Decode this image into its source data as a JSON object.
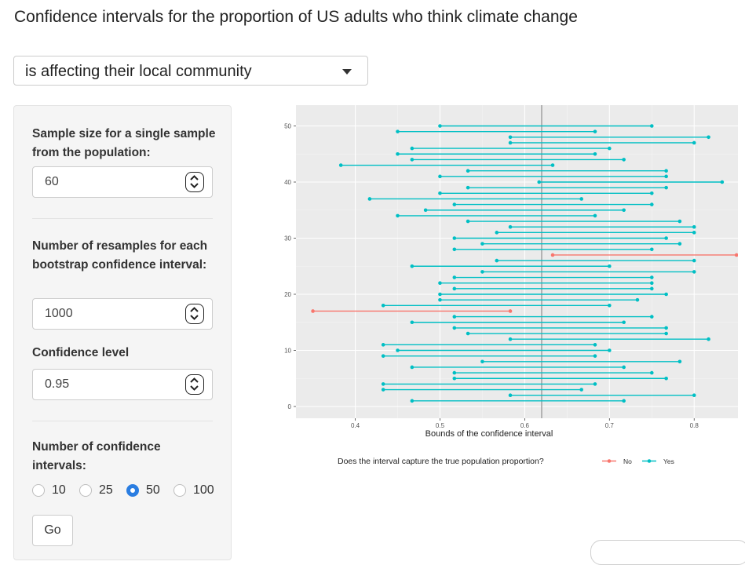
{
  "page": {
    "title": "Confidence intervals for the proportion of US adults who think climate change"
  },
  "statement_select": {
    "value": "is affecting their local community"
  },
  "controls": {
    "sample_size": {
      "label": "Sample size for a single sample from the population:",
      "value": "60"
    },
    "resamples": {
      "label": "Number of resamples for each bootstrap confidence interval:",
      "value": "1000"
    },
    "confidence_level": {
      "label": "Confidence level",
      "value": "0.95"
    },
    "num_intervals": {
      "label": "Number of confidence intervals:",
      "options": [
        "10",
        "25",
        "50",
        "100"
      ],
      "selected": "50"
    },
    "go_label": "Go"
  },
  "chart_data": {
    "type": "interval",
    "xlabel": "Bounds of the confidence interval",
    "ylabel": "",
    "xlim": [
      0.33,
      0.86
    ],
    "ylim": [
      0,
      52
    ],
    "x_ticks": [
      "0.4",
      "0.5",
      "0.6",
      "0.7",
      "0.8"
    ],
    "y_ticks": [
      "0",
      "10",
      "20",
      "30",
      "40",
      "50"
    ],
    "true_proportion": 0.62,
    "grid": true,
    "legend": {
      "title": "Does the interval capture the true population proportion?",
      "placement": "bottom",
      "entries": [
        {
          "name": "No",
          "color": "#f8766d"
        },
        {
          "name": "Yes",
          "color": "#00bfc4"
        }
      ]
    },
    "intervals": [
      {
        "id": 1,
        "lower": 0.467,
        "upper": 0.717,
        "captured": "Yes"
      },
      {
        "id": 2,
        "lower": 0.583,
        "upper": 0.8,
        "captured": "Yes"
      },
      {
        "id": 3,
        "lower": 0.433,
        "upper": 0.667,
        "captured": "Yes"
      },
      {
        "id": 4,
        "lower": 0.433,
        "upper": 0.683,
        "captured": "Yes"
      },
      {
        "id": 5,
        "lower": 0.517,
        "upper": 0.767,
        "captured": "Yes"
      },
      {
        "id": 6,
        "lower": 0.517,
        "upper": 0.75,
        "captured": "Yes"
      },
      {
        "id": 7,
        "lower": 0.467,
        "upper": 0.717,
        "captured": "Yes"
      },
      {
        "id": 8,
        "lower": 0.55,
        "upper": 0.783,
        "captured": "Yes"
      },
      {
        "id": 9,
        "lower": 0.433,
        "upper": 0.683,
        "captured": "Yes"
      },
      {
        "id": 10,
        "lower": 0.45,
        "upper": 0.7,
        "captured": "Yes"
      },
      {
        "id": 11,
        "lower": 0.433,
        "upper": 0.683,
        "captured": "Yes"
      },
      {
        "id": 12,
        "lower": 0.583,
        "upper": 0.817,
        "captured": "Yes"
      },
      {
        "id": 13,
        "lower": 0.533,
        "upper": 0.767,
        "captured": "Yes"
      },
      {
        "id": 14,
        "lower": 0.517,
        "upper": 0.767,
        "captured": "Yes"
      },
      {
        "id": 15,
        "lower": 0.467,
        "upper": 0.717,
        "captured": "Yes"
      },
      {
        "id": 16,
        "lower": 0.517,
        "upper": 0.75,
        "captured": "Yes"
      },
      {
        "id": 17,
        "lower": 0.35,
        "upper": 0.583,
        "captured": "No"
      },
      {
        "id": 18,
        "lower": 0.433,
        "upper": 0.7,
        "captured": "Yes"
      },
      {
        "id": 19,
        "lower": 0.5,
        "upper": 0.733,
        "captured": "Yes"
      },
      {
        "id": 20,
        "lower": 0.5,
        "upper": 0.767,
        "captured": "Yes"
      },
      {
        "id": 21,
        "lower": 0.517,
        "upper": 0.75,
        "captured": "Yes"
      },
      {
        "id": 22,
        "lower": 0.5,
        "upper": 0.75,
        "captured": "Yes"
      },
      {
        "id": 23,
        "lower": 0.517,
        "upper": 0.75,
        "captured": "Yes"
      },
      {
        "id": 24,
        "lower": 0.55,
        "upper": 0.8,
        "captured": "Yes"
      },
      {
        "id": 25,
        "lower": 0.467,
        "upper": 0.7,
        "captured": "Yes"
      },
      {
        "id": 26,
        "lower": 0.567,
        "upper": 0.8,
        "captured": "Yes"
      },
      {
        "id": 27,
        "lower": 0.633,
        "upper": 0.85,
        "captured": "No"
      },
      {
        "id": 28,
        "lower": 0.517,
        "upper": 0.75,
        "captured": "Yes"
      },
      {
        "id": 29,
        "lower": 0.55,
        "upper": 0.783,
        "captured": "Yes"
      },
      {
        "id": 30,
        "lower": 0.517,
        "upper": 0.767,
        "captured": "Yes"
      },
      {
        "id": 31,
        "lower": 0.567,
        "upper": 0.8,
        "captured": "Yes"
      },
      {
        "id": 32,
        "lower": 0.583,
        "upper": 0.8,
        "captured": "Yes"
      },
      {
        "id": 33,
        "lower": 0.533,
        "upper": 0.783,
        "captured": "Yes"
      },
      {
        "id": 34,
        "lower": 0.45,
        "upper": 0.683,
        "captured": "Yes"
      },
      {
        "id": 35,
        "lower": 0.483,
        "upper": 0.717,
        "captured": "Yes"
      },
      {
        "id": 36,
        "lower": 0.517,
        "upper": 0.75,
        "captured": "Yes"
      },
      {
        "id": 37,
        "lower": 0.417,
        "upper": 0.667,
        "captured": "Yes"
      },
      {
        "id": 38,
        "lower": 0.5,
        "upper": 0.75,
        "captured": "Yes"
      },
      {
        "id": 39,
        "lower": 0.533,
        "upper": 0.767,
        "captured": "Yes"
      },
      {
        "id": 40,
        "lower": 0.617,
        "upper": 0.833,
        "captured": "Yes"
      },
      {
        "id": 41,
        "lower": 0.5,
        "upper": 0.767,
        "captured": "Yes"
      },
      {
        "id": 42,
        "lower": 0.533,
        "upper": 0.767,
        "captured": "Yes"
      },
      {
        "id": 43,
        "lower": 0.383,
        "upper": 0.633,
        "captured": "Yes"
      },
      {
        "id": 44,
        "lower": 0.467,
        "upper": 0.717,
        "captured": "Yes"
      },
      {
        "id": 45,
        "lower": 0.45,
        "upper": 0.683,
        "captured": "Yes"
      },
      {
        "id": 46,
        "lower": 0.467,
        "upper": 0.7,
        "captured": "Yes"
      },
      {
        "id": 47,
        "lower": 0.583,
        "upper": 0.8,
        "captured": "Yes"
      },
      {
        "id": 48,
        "lower": 0.583,
        "upper": 0.817,
        "captured": "Yes"
      },
      {
        "id": 49,
        "lower": 0.45,
        "upper": 0.683,
        "captured": "Yes"
      },
      {
        "id": 50,
        "lower": 0.5,
        "upper": 0.75,
        "captured": "Yes"
      }
    ]
  }
}
